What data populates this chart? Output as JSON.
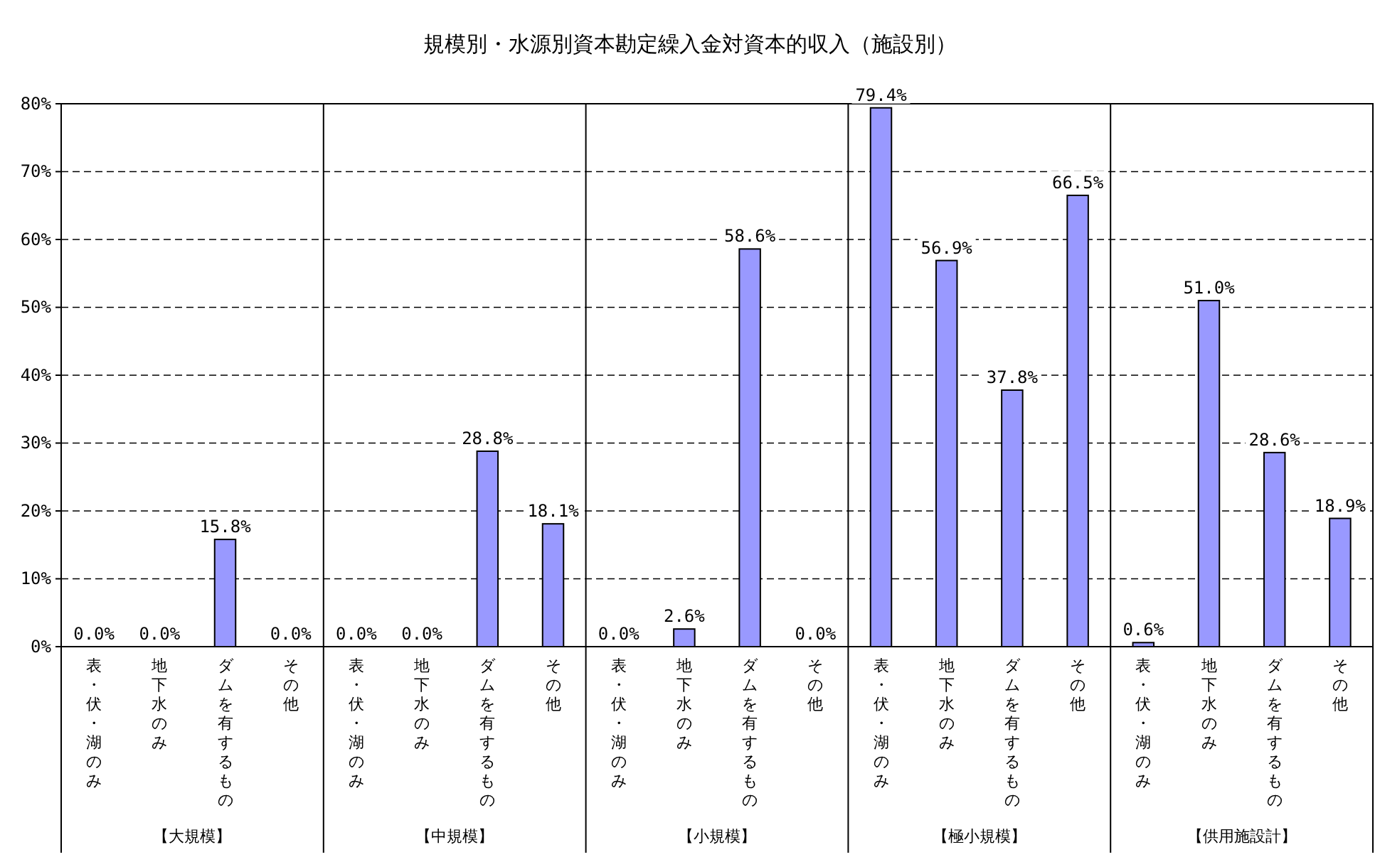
{
  "chart_data": {
    "type": "bar",
    "title": "規模別・水源別資本勘定繰入金対資本的収入（施設別）",
    "categories": [
      "表・伏・湖のみ",
      "地下水のみ",
      "ダムを有するもの",
      "その他",
      "表・伏・湖のみ",
      "地下水のみ",
      "ダムを有するもの",
      "その他",
      "表・伏・湖のみ",
      "地下水のみ",
      "ダムを有するもの",
      "その他",
      "表・伏・湖のみ",
      "地下水のみ",
      "ダムを有するもの",
      "その他",
      "表・伏・湖のみ",
      "地下水のみ",
      "ダムを有するもの",
      "その他"
    ],
    "values": [
      0.0,
      0.0,
      15.8,
      0.0,
      0.0,
      0.0,
      28.8,
      18.1,
      0.0,
      2.6,
      58.6,
      0.0,
      79.4,
      56.9,
      37.8,
      66.5,
      0.6,
      51.0,
      28.6,
      18.9
    ],
    "value_labels": [
      "0.0%",
      "0.0%",
      "15.8%",
      "0.0%",
      "0.0%",
      "0.0%",
      "28.8%",
      "18.1%",
      "0.0%",
      "2.6%",
      "58.6%",
      "0.0%",
      "79.4%",
      "56.9%",
      "37.8%",
      "66.5%",
      "0.6%",
      "51.0%",
      "28.6%",
      "18.9%"
    ],
    "color": "#9999ff",
    "annotations": [
      "【大規模】",
      "【中規模】",
      "【小規模】",
      "【極小規模】",
      "【供用施設計】"
    ],
    "ylim": [
      0,
      80
    ],
    "yticks": [
      {
        "value": 0,
        "label": "0%"
      },
      {
        "value": 10,
        "label": "10%"
      },
      {
        "value": 20,
        "label": "20%"
      },
      {
        "value": 30,
        "label": "30%"
      },
      {
        "value": 40,
        "label": "40%"
      },
      {
        "value": 50,
        "label": "50%"
      },
      {
        "value": 60,
        "label": "60%"
      },
      {
        "value": 70,
        "label": "70%"
      },
      {
        "value": 80,
        "label": "80%"
      }
    ],
    "grid": "y"
  }
}
